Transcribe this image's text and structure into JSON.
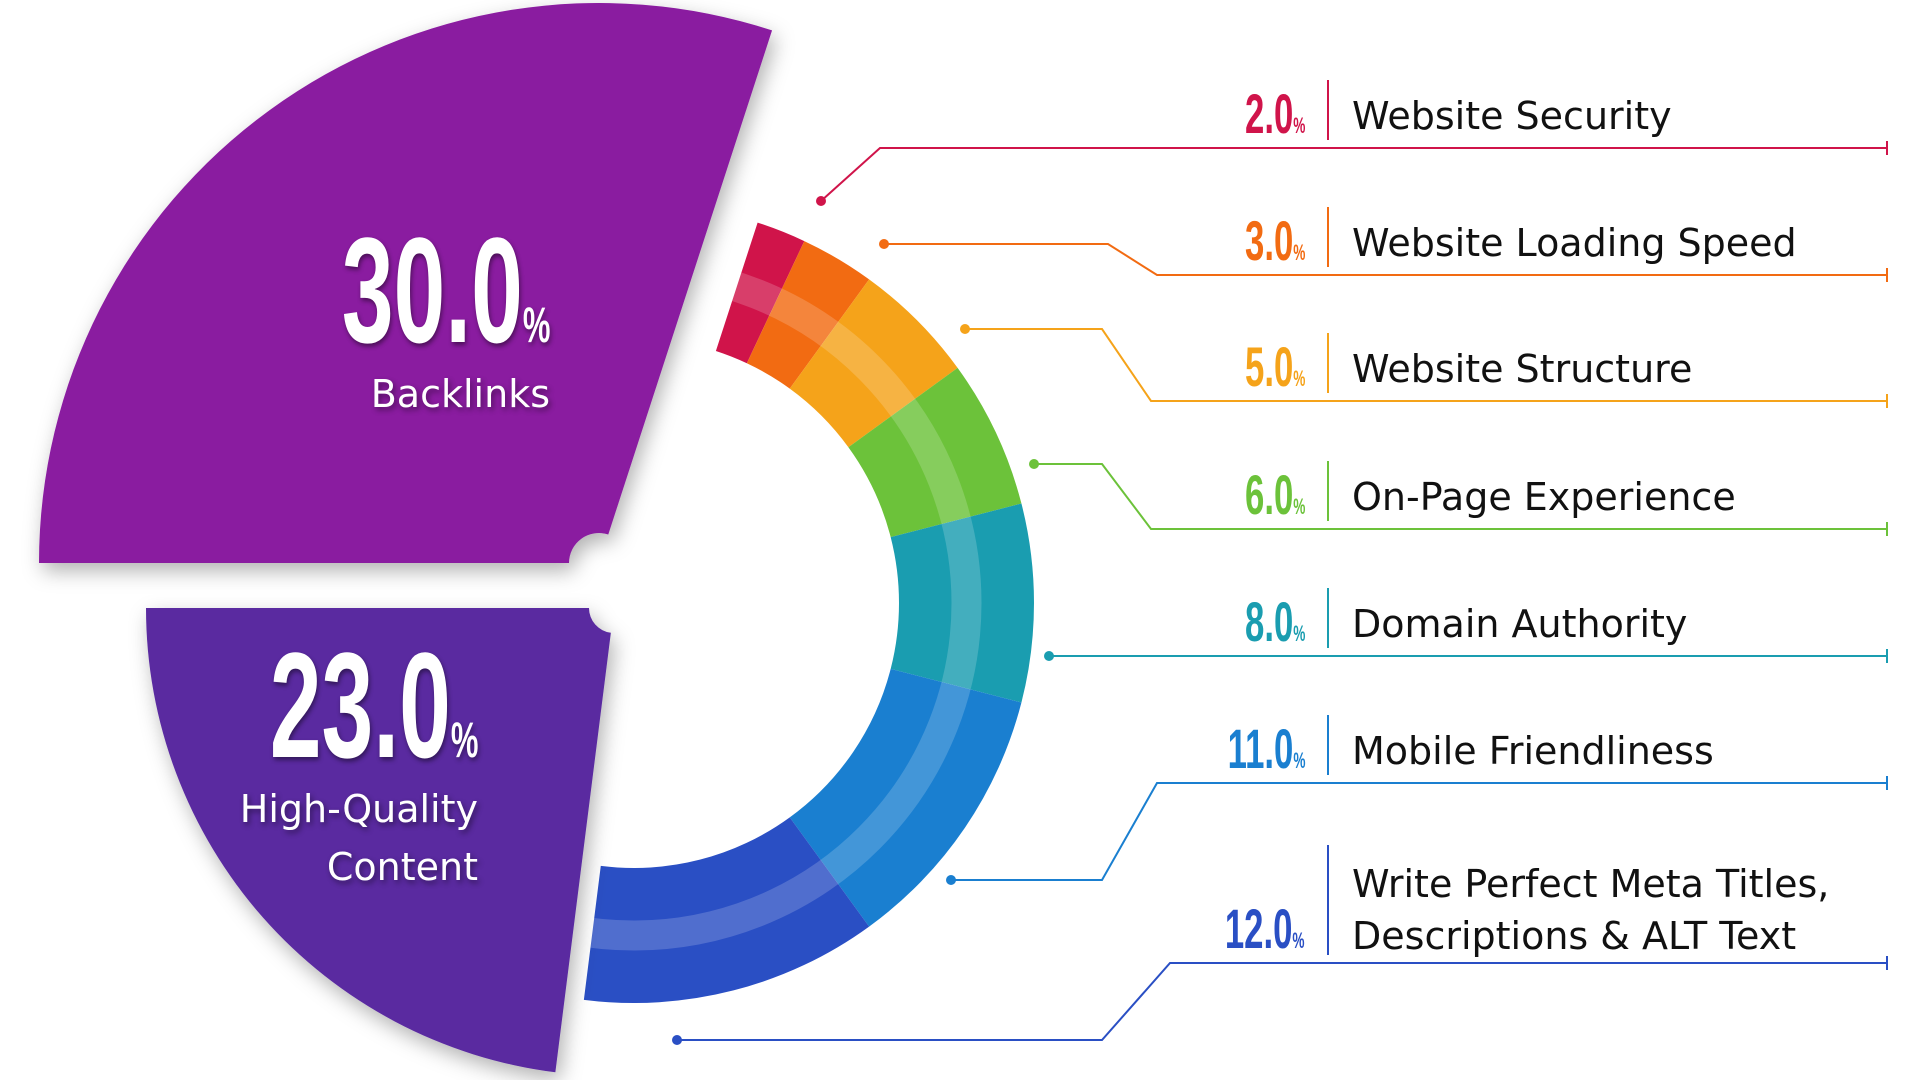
{
  "chart_data": {
    "type": "pie",
    "variant": "exploded donut",
    "legend_placement": "right",
    "slices": [
      {
        "label": "Website Security",
        "value": 2.0,
        "display": "2.0",
        "color": "#d0144a"
      },
      {
        "label": "Website Loading Speed",
        "value": 3.0,
        "display": "3.0",
        "color": "#f26b12"
      },
      {
        "label": "Website Structure",
        "value": 5.0,
        "display": "5.0",
        "color": "#f5a31a"
      },
      {
        "label": "On-Page Experience",
        "value": 6.0,
        "display": "6.0",
        "color": "#6cc23a"
      },
      {
        "label": "Domain Authority",
        "value": 8.0,
        "display": "8.0",
        "color": "#1a9db0"
      },
      {
        "label": "Mobile Friendliness",
        "value": 11.0,
        "display": "11.0",
        "color": "#1a7fd0"
      },
      {
        "label": "Write Perfect Meta Titles, Descriptions & ALT Text",
        "label_lines": [
          "Write Perfect Meta Titles,",
          "Descriptions & ALT Text"
        ],
        "value": 12.0,
        "display": "12.0",
        "color": "#2a4fc4"
      },
      {
        "label": "High-Quality Content",
        "label_lines": [
          "High-Quality",
          "Content"
        ],
        "value": 23.0,
        "display": "23.0",
        "color": "#5a2aa0"
      },
      {
        "label": "Backlinks",
        "label_lines": [
          "Backlinks"
        ],
        "value": 30.0,
        "display": "30.0",
        "color": "#8a1aa0"
      }
    ],
    "unit": "%"
  }
}
